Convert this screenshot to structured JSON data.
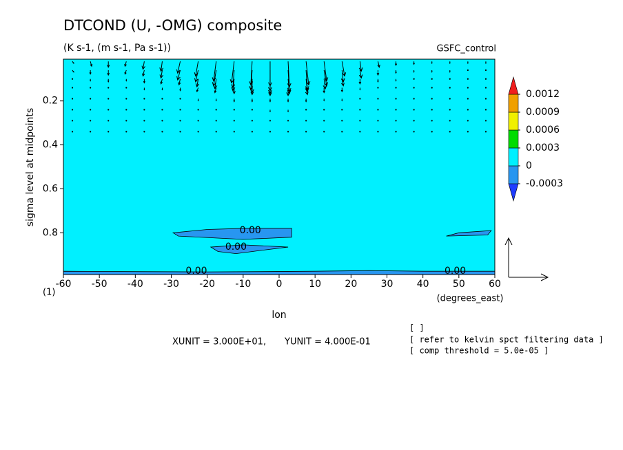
{
  "chart_data": {
    "type": "contour_vector",
    "title": "DTCOND (U, -OMG) composite",
    "subtitle": "(K s-1, (m s-1, Pa s-1))",
    "run_label": "GSFC_control",
    "y_label": "sigma level at midpoints",
    "x_label": "lon",
    "x_units": "(degrees_east)",
    "corner_label": "(1)",
    "notes": [
      "[  ]",
      "[ refer to kelvin spct filtering data ]",
      "[ comp threshold = 5.0e-05 ]"
    ],
    "xlim": [
      -60,
      60
    ],
    "xticks": [
      -60,
      -50,
      -40,
      -30,
      -20,
      -10,
      0,
      10,
      20,
      30,
      40,
      50,
      60
    ],
    "ylim": [
      0.01,
      0.99
    ],
    "y_inverted": true,
    "yticks": [
      0.2,
      0.4,
      0.6,
      0.8
    ],
    "background_color": "#00f0ff",
    "levels": [
      -0.0003,
      0,
      0.0003,
      0.0006,
      0.0009,
      0.0012
    ],
    "level_colors": [
      "#1e3cff",
      "#2896f0",
      "#00f0ff",
      "#00dc00",
      "#f0f000",
      "#f0a000",
      "#f01e1e"
    ],
    "regions": [
      {
        "color": "#2896f0",
        "lon": [
          -29.5,
          -20,
          -10,
          3.5,
          3.5,
          -10,
          -28
        ],
        "sigma": [
          0.8,
          0.785,
          0.78,
          0.78,
          0.82,
          0.83,
          0.815
        ]
      },
      {
        "color": "#2896f0",
        "lon": [
          -19,
          -10,
          2.5,
          -5,
          -12,
          -17
        ],
        "sigma": [
          0.865,
          0.855,
          0.865,
          0.88,
          0.895,
          0.885
        ]
      },
      {
        "color": "#2896f0",
        "lon": [
          46.5,
          50,
          59,
          58
        ],
        "sigma": [
          0.815,
          0.8,
          0.79,
          0.81
        ]
      },
      {
        "color": "#2896f0",
        "lon": [
          -60,
          -20,
          10,
          25,
          40,
          60,
          60,
          -60
        ],
        "sigma": [
          0.975,
          0.978,
          0.975,
          0.972,
          0.975,
          0.975,
          0.99,
          0.99
        ]
      }
    ],
    "contour_labels": {
      "lon": [
        -8,
        -12,
        -23,
        49
      ],
      "sigma": [
        0.79,
        0.865,
        0.975,
        0.975
      ],
      "values": [
        0,
        0,
        0,
        0
      ],
      "value_labels": [
        "0.00",
        "0.00",
        "0.00",
        "0.00"
      ]
    },
    "vectors": {
      "x": [
        -57.5,
        -52.5,
        -47.5,
        -42.5,
        -37.5,
        -32.5,
        -27.5,
        -22.5,
        -17.5,
        -12.5,
        -7.5,
        -2.5,
        2.5,
        7.5,
        12.5,
        17.5,
        22.5,
        27.5,
        32.5,
        37.5,
        42.5,
        47.5,
        52.5,
        57.5
      ],
      "y": [
        0.02,
        0.06,
        0.1,
        0.14,
        0.19,
        0.24,
        0.29,
        0.34
      ],
      "u": [
        [
          1,
          1,
          0,
          -1,
          -1,
          -1,
          -2,
          -2,
          -2,
          -2,
          -1,
          0,
          1,
          2,
          2,
          2,
          1,
          1,
          0,
          0,
          0,
          0,
          0,
          0
        ],
        [
          1,
          0,
          0,
          -1,
          -1,
          -1,
          -2,
          -2,
          -2,
          -1,
          -1,
          0,
          1,
          1,
          2,
          1,
          1,
          0,
          0,
          0,
          0,
          0,
          0,
          0
        ],
        [
          0,
          0,
          0,
          0,
          0,
          -1,
          -1,
          -1,
          -1,
          -1,
          0,
          0,
          1,
          1,
          1,
          1,
          0,
          0,
          0,
          0,
          0,
          0,
          0,
          0
        ],
        [
          0,
          0,
          0,
          0,
          0,
          0,
          0,
          -1,
          -1,
          0,
          0,
          0,
          0,
          1,
          0,
          0,
          0,
          0,
          0,
          0,
          0,
          0,
          0,
          0
        ],
        [
          0,
          0,
          0,
          0,
          0,
          0,
          0,
          0,
          0,
          0,
          0,
          0,
          0,
          0,
          0,
          0,
          0,
          0,
          0,
          0,
          0,
          0,
          0,
          0
        ],
        [
          0,
          0,
          0,
          0,
          0,
          0,
          0,
          0,
          0,
          0,
          0,
          0,
          0,
          0,
          0,
          0,
          0,
          0,
          0,
          0,
          0,
          0,
          0,
          0
        ],
        [
          0,
          0,
          0,
          0,
          0,
          0,
          0,
          0,
          0,
          0,
          0,
          0,
          0,
          0,
          0,
          0,
          0,
          0,
          0,
          0,
          0,
          0,
          0,
          0
        ],
        [
          0,
          0,
          0,
          0,
          0,
          0,
          0,
          0,
          0,
          0,
          0,
          0,
          0,
          0,
          0,
          0,
          0,
          0,
          0,
          0,
          0,
          0,
          0,
          0
        ]
      ],
      "w": [
        [
          -0.02,
          -0.05,
          -0.06,
          -0.05,
          -0.08,
          -0.1,
          -0.12,
          -0.15,
          -0.2,
          -0.22,
          -0.24,
          -0.25,
          -0.26,
          -0.24,
          -0.2,
          -0.15,
          -0.1,
          -0.06,
          -0.04,
          -0.03,
          -0.02,
          -0.02,
          -0.02,
          -0.02
        ],
        [
          -0.02,
          -0.04,
          -0.05,
          -0.04,
          -0.06,
          -0.08,
          -0.1,
          -0.12,
          -0.16,
          -0.18,
          -0.2,
          -0.21,
          -0.22,
          -0.2,
          -0.16,
          -0.12,
          -0.08,
          -0.05,
          -0.03,
          -0.02,
          -0.02,
          -0.02,
          -0.01,
          -0.01
        ],
        [
          -0.01,
          -0.02,
          -0.03,
          -0.02,
          -0.04,
          -0.05,
          -0.06,
          -0.08,
          -0.1,
          -0.12,
          -0.14,
          -0.15,
          -0.15,
          -0.13,
          -0.1,
          -0.07,
          -0.05,
          -0.03,
          -0.02,
          -0.01,
          -0.01,
          -0.01,
          -0.01,
          -0.01
        ],
        [
          -0.01,
          -0.01,
          -0.01,
          -0.01,
          -0.02,
          -0.02,
          -0.03,
          -0.04,
          -0.05,
          -0.06,
          -0.07,
          -0.08,
          -0.08,
          -0.07,
          -0.05,
          -0.04,
          -0.02,
          -0.01,
          -0.01,
          -0.01,
          0,
          0,
          0,
          0
        ],
        [
          0,
          0,
          0,
          0,
          -0.01,
          -0.01,
          -0.01,
          -0.02,
          -0.02,
          -0.03,
          -0.03,
          -0.03,
          -0.03,
          -0.03,
          -0.02,
          -0.02,
          -0.01,
          -0.01,
          0,
          0,
          0,
          0,
          0,
          0
        ],
        [
          0,
          0,
          0,
          0,
          0,
          0,
          -0.01,
          -0.01,
          -0.01,
          -0.01,
          -0.01,
          -0.02,
          -0.02,
          -0.01,
          -0.01,
          -0.01,
          -0.01,
          0,
          0,
          0,
          0,
          0,
          0,
          0
        ],
        [
          0,
          0,
          0,
          0,
          0,
          0,
          0,
          0,
          0,
          0,
          0,
          0,
          0,
          0,
          0,
          0,
          0,
          0,
          0,
          0,
          0,
          0,
          0,
          0
        ],
        [
          0,
          0,
          0,
          0,
          0,
          0,
          0,
          0,
          0,
          0,
          0,
          0,
          0,
          0,
          0,
          0,
          0,
          0,
          0,
          0,
          0,
          0,
          0,
          0
        ]
      ]
    },
    "vector_units": [
      {
        "value": 30,
        "label": "XUNIT = 3.000E+01,"
      },
      {
        "value": 0.4,
        "label": "YUNIT = 4.000E-01"
      }
    ]
  }
}
